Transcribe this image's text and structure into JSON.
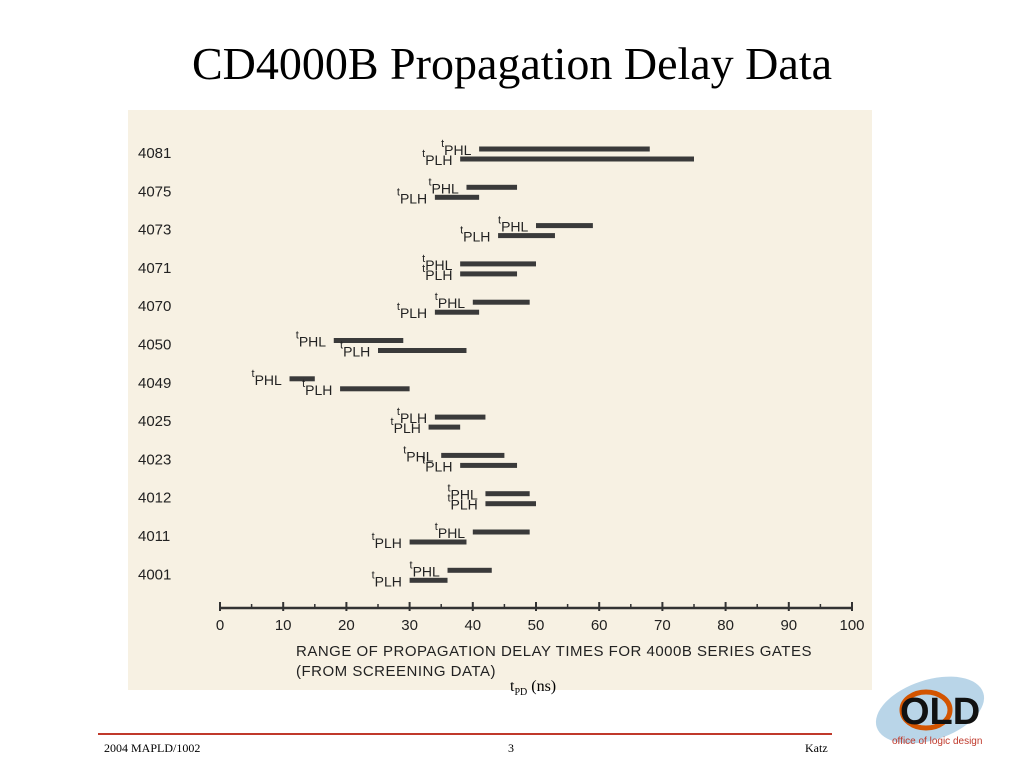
{
  "slide": {
    "title": "CD4000B Propagation Delay Data",
    "footer_left": "2004 MAPLD/1002",
    "footer_center": "3",
    "footer_right": "Katz",
    "x_unit_main": "t",
    "x_unit_sub": "PD",
    "x_unit_rest": " (ns)"
  },
  "logo": {
    "letters": "OLD",
    "tagline": "office of logic design"
  },
  "chart_data": {
    "type": "bar",
    "orientation": "horizontal-range",
    "caption": [
      "RANGE OF PROPAGATION DELAY TIMES FOR 4000B SERIES GATES",
      "(FROM SCREENING DATA)"
    ],
    "xlim": [
      0,
      100
    ],
    "x_ticks": [
      "0",
      "10",
      "20",
      "30",
      "40",
      "50",
      "60",
      "70",
      "80",
      "90",
      "100"
    ],
    "categories": [
      "4081",
      "4075",
      "4073",
      "4071",
      "4070",
      "4050",
      "4049",
      "4025",
      "4023",
      "4012",
      "4011",
      "4001"
    ],
    "series_labels": {
      "PHL": "PHL",
      "PLH": "PLH"
    },
    "ranges": [
      {
        "part": "4081",
        "delay": "PHL",
        "min": 41,
        "max": 68
      },
      {
        "part": "4081",
        "delay": "PLH",
        "min": 38,
        "max": 75
      },
      {
        "part": "4075",
        "delay": "PHL",
        "min": 39,
        "max": 47
      },
      {
        "part": "4075",
        "delay": "PLH",
        "min": 34,
        "max": 41
      },
      {
        "part": "4073",
        "delay": "PHL",
        "min": 50,
        "max": 59
      },
      {
        "part": "4073",
        "delay": "PLH",
        "min": 44,
        "max": 53
      },
      {
        "part": "4071",
        "delay": "PHL",
        "min": 38,
        "max": 50
      },
      {
        "part": "4071",
        "delay": "PLH",
        "min": 38,
        "max": 47
      },
      {
        "part": "4070",
        "delay": "PHL",
        "min": 40,
        "max": 49
      },
      {
        "part": "4070",
        "delay": "PLH",
        "min": 34,
        "max": 41
      },
      {
        "part": "4050",
        "delay": "PHL",
        "min": 18,
        "max": 29
      },
      {
        "part": "4050",
        "delay": "PLH",
        "min": 25,
        "max": 39
      },
      {
        "part": "4049",
        "delay": "PHL",
        "min": 11,
        "max": 15
      },
      {
        "part": "4049",
        "delay": "PLH",
        "min": 19,
        "max": 30
      },
      {
        "part": "4025",
        "delay": "PLH",
        "min": 34,
        "max": 42
      },
      {
        "part": "4025",
        "delay": "PLH",
        "min": 33,
        "max": 38
      },
      {
        "part": "4023",
        "delay": "PHL",
        "min": 35,
        "max": 45
      },
      {
        "part": "4023",
        "delay": "PLH",
        "min": 38,
        "max": 47
      },
      {
        "part": "4012",
        "delay": "PHL",
        "min": 42,
        "max": 49
      },
      {
        "part": "4012",
        "delay": "PLH",
        "min": 42,
        "max": 50
      },
      {
        "part": "4011",
        "delay": "PHL",
        "min": 40,
        "max": 49
      },
      {
        "part": "4011",
        "delay": "PLH",
        "min": 30,
        "max": 39
      },
      {
        "part": "4001",
        "delay": "PHL",
        "min": 36,
        "max": 43
      },
      {
        "part": "4001",
        "delay": "PLH",
        "min": 30,
        "max": 36
      }
    ]
  }
}
